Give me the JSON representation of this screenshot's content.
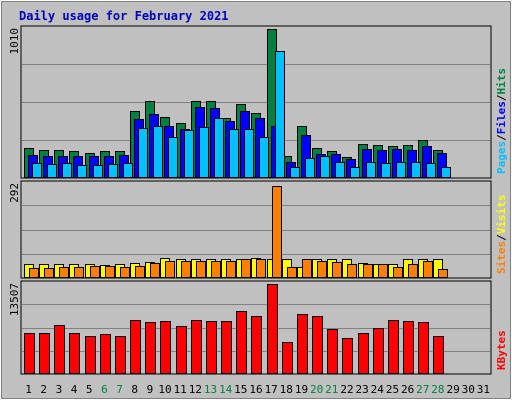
{
  "chart_data": {
    "type": "bar",
    "title": "Daily usage for February 2021",
    "days": [
      "1",
      "2",
      "3",
      "4",
      "5",
      "6",
      "7",
      "8",
      "9",
      "10",
      "11",
      "12",
      "13",
      "14",
      "15",
      "16",
      "17",
      "18",
      "19",
      "20",
      "21",
      "22",
      "23",
      "24",
      "25",
      "26",
      "27",
      "28",
      "29",
      "30",
      "31"
    ],
    "weekend_days": [
      "6",
      "7",
      "13",
      "14",
      "20",
      "21",
      "27",
      "28"
    ],
    "panels": [
      {
        "id": "hits-files-pages",
        "ymax_label": "1010",
        "ylim": [
          0,
          1010
        ],
        "legend": [
          "Pages",
          "/",
          "Files",
          "/",
          "Hits"
        ],
        "series": [
          {
            "name": "Hits",
            "color": "#008040",
            "values": [
              195,
              185,
              185,
              175,
              165,
              175,
              180,
              450,
              520,
              410,
              370,
              520,
              520,
              400,
              500,
              440,
              1010,
              145,
              345,
              195,
              180,
              135,
              225,
              215,
              210,
              215,
              255,
              185,
              0,
              0,
              0
            ]
          },
          {
            "name": "Files",
            "color": "#0000ff",
            "values": [
              150,
              145,
              145,
              140,
              140,
              145,
              150,
              395,
              430,
              350,
              330,
              475,
              470,
              380,
              450,
              400,
              350,
              105,
              290,
              160,
              160,
              120,
              190,
              185,
              190,
              185,
              210,
              165,
              0,
              0,
              0
            ]
          },
          {
            "name": "Pages",
            "color": "#00c0ff",
            "values": [
              95,
              90,
              95,
              85,
              80,
              90,
              95,
              335,
              350,
              270,
              320,
              340,
              400,
              330,
              325,
              275,
              860,
              65,
              130,
              140,
              100,
              70,
              100,
              95,
              105,
              100,
              95,
              70,
              0,
              0,
              0
            ]
          }
        ]
      },
      {
        "id": "visits-sites",
        "ymax_label": "292",
        "ylim": [
          0,
          292
        ],
        "legend": [
          "Sites",
          "/",
          "Visits"
        ],
        "series": [
          {
            "name": "Visits",
            "color": "#ffff00",
            "values": [
              42,
              40,
              42,
              40,
              40,
              38,
              40,
              45,
              48,
              60,
              55,
              58,
              55,
              58,
              55,
              60,
              58,
              57,
              32,
              55,
              58,
              55,
              45,
              42,
              42,
              55,
              55,
              55,
              0,
              0,
              0
            ]
          },
          {
            "name": "Sites",
            "color": "#ff8000",
            "values": [
              28,
              28,
              30,
              30,
              35,
              35,
              32,
              35,
              45,
              50,
              50,
              50,
              50,
              50,
              55,
              58,
              285,
              30,
              55,
              50,
              48,
              40,
              40,
              42,
              30,
              40,
              50,
              25,
              0,
              0,
              0
            ]
          }
        ]
      },
      {
        "id": "kbytes",
        "ymax_label": "13507",
        "ylim": [
          0,
          13507
        ],
        "legend": [
          "KBytes"
        ],
        "series": [
          {
            "name": "KBytes",
            "color": "#ff0000",
            "values": [
              6000,
              6000,
              7250,
              6000,
              5600,
              5900,
              5600,
              8100,
              7700,
              7900,
              7100,
              8000,
              7900,
              7900,
              9400,
              8700,
              13507,
              4700,
              9000,
              8600,
              6750,
              5300,
              6100,
              6900,
              8000,
              7900,
              7750,
              5600,
              0,
              0,
              0
            ]
          }
        ]
      }
    ],
    "colors": {
      "background": "#c0c0c0",
      "frame": "#000000",
      "gridline": "#808080",
      "title": "#0000c0",
      "day_label": "#000000",
      "weekend_label": "#008040",
      "legend_separator": "#000000"
    }
  }
}
